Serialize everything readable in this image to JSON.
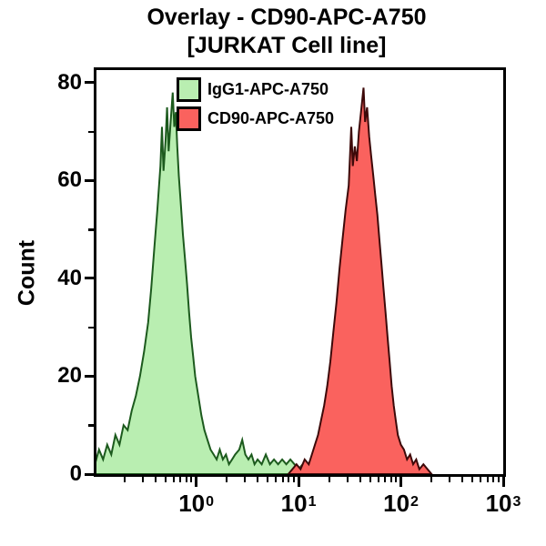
{
  "title": {
    "line1": "Overlay - CD90-APC-A750",
    "line2": "[JURKAT Cell line]"
  },
  "axes": {
    "y": {
      "label": "Count",
      "major_ticks": [
        0,
        20,
        40,
        60,
        80
      ],
      "minor_ticks": [
        10,
        30,
        50,
        70
      ],
      "max": 82.6
    },
    "x": {
      "scale": "log10",
      "log_min": -0.975,
      "log_max": 3,
      "major_ticks": [
        {
          "text": "10",
          "sup": "0",
          "log": 0
        },
        {
          "text": "10",
          "sup": "1",
          "log": 1
        },
        {
          "text": "10",
          "sup": "2",
          "log": 2
        },
        {
          "text": "10",
          "sup": "3",
          "log": 3
        }
      ],
      "minor_tick_decades": [
        -1,
        0,
        1,
        2
      ],
      "minor_tick_multiples": [
        2,
        3,
        4,
        5,
        6,
        7,
        8,
        9
      ]
    }
  },
  "legend": [
    {
      "label": "IgG1-APC-A750",
      "fill": "#b9eeb1",
      "border": "#000000"
    },
    {
      "label": "CD90-APC-A750",
      "fill": "#fa625e",
      "border": "#000000"
    }
  ],
  "chart_data": {
    "type": "area",
    "title": "Overlay - CD90-APC-A750 [JURKAT Cell line]",
    "xlabel": "",
    "ylabel": "Count",
    "x_scale": "log10",
    "xlim_log": [
      -0.975,
      3
    ],
    "ylim": [
      0,
      82.6
    ],
    "grid": false,
    "legend_position": "top-left-inside",
    "series": [
      {
        "name": "IgG1-APC-A750",
        "fill": "#b9eeb1",
        "stroke": "#1c5a1d",
        "peak_x_log": -0.23,
        "peak_count": 78,
        "points": [
          [
            -1.07,
            2
          ],
          [
            -1.03,
            3
          ],
          [
            -0.99,
            2
          ],
          [
            -0.95,
            5
          ],
          [
            -0.91,
            3
          ],
          [
            -0.87,
            6
          ],
          [
            -0.83,
            4
          ],
          [
            -0.79,
            8
          ],
          [
            -0.75,
            6
          ],
          [
            -0.71,
            10
          ],
          [
            -0.67,
            9
          ],
          [
            -0.63,
            13
          ],
          [
            -0.59,
            16
          ],
          [
            -0.55,
            20
          ],
          [
            -0.51,
            25
          ],
          [
            -0.47,
            31
          ],
          [
            -0.44,
            38
          ],
          [
            -0.41,
            46
          ],
          [
            -0.38,
            54
          ],
          [
            -0.35,
            63
          ],
          [
            -0.335,
            71
          ],
          [
            -0.32,
            62
          ],
          [
            -0.3,
            68
          ],
          [
            -0.285,
            75
          ],
          [
            -0.27,
            66
          ],
          [
            -0.25,
            72
          ],
          [
            -0.23,
            78
          ],
          [
            -0.215,
            71
          ],
          [
            -0.2,
            74
          ],
          [
            -0.185,
            67
          ],
          [
            -0.17,
            61
          ],
          [
            -0.15,
            55
          ],
          [
            -0.13,
            49
          ],
          [
            -0.11,
            44
          ],
          [
            -0.09,
            39
          ],
          [
            -0.07,
            33
          ],
          [
            -0.05,
            28
          ],
          [
            -0.03,
            24
          ],
          [
            -0.01,
            20
          ],
          [
            0.02,
            16
          ],
          [
            0.05,
            12
          ],
          [
            0.08,
            9
          ],
          [
            0.11,
            7
          ],
          [
            0.14,
            5
          ],
          [
            0.17,
            4
          ],
          [
            0.2,
            3
          ],
          [
            0.23,
            5
          ],
          [
            0.26,
            3
          ],
          [
            0.29,
            4
          ],
          [
            0.32,
            2
          ],
          [
            0.35,
            3
          ],
          [
            0.38,
            4
          ],
          [
            0.42,
            5
          ],
          [
            0.45,
            7
          ],
          [
            0.48,
            4
          ],
          [
            0.51,
            3
          ],
          [
            0.54,
            4
          ],
          [
            0.57,
            2
          ],
          [
            0.6,
            3
          ],
          [
            0.64,
            2
          ],
          [
            0.68,
            4
          ],
          [
            0.72,
            2
          ],
          [
            0.76,
            3
          ],
          [
            0.8,
            2
          ],
          [
            0.84,
            3
          ],
          [
            0.88,
            2
          ],
          [
            0.92,
            3
          ],
          [
            0.96,
            2
          ],
          [
            1.0,
            1
          ],
          [
            1.04,
            2
          ],
          [
            1.08,
            0
          ]
        ]
      },
      {
        "name": "CD90-APC-A750",
        "fill": "#fa625e",
        "stroke": "#3d0909",
        "peak_x_log": 1.635,
        "peak_count": 79,
        "points": [
          [
            0.9,
            0
          ],
          [
            0.94,
            1
          ],
          [
            0.98,
            2
          ],
          [
            1.02,
            1
          ],
          [
            1.06,
            3
          ],
          [
            1.1,
            2
          ],
          [
            1.13,
            4
          ],
          [
            1.16,
            6
          ],
          [
            1.19,
            8
          ],
          [
            1.22,
            11
          ],
          [
            1.25,
            14
          ],
          [
            1.28,
            18
          ],
          [
            1.31,
            23
          ],
          [
            1.34,
            29
          ],
          [
            1.37,
            35
          ],
          [
            1.4,
            42
          ],
          [
            1.43,
            48
          ],
          [
            1.46,
            54
          ],
          [
            1.49,
            59
          ],
          [
            1.515,
            71
          ],
          [
            1.53,
            63
          ],
          [
            1.55,
            67
          ],
          [
            1.57,
            64
          ],
          [
            1.59,
            70
          ],
          [
            1.61,
            74
          ],
          [
            1.635,
            79
          ],
          [
            1.65,
            72
          ],
          [
            1.67,
            75
          ],
          [
            1.69,
            69
          ],
          [
            1.71,
            65
          ],
          [
            1.73,
            61
          ],
          [
            1.75,
            57
          ],
          [
            1.77,
            53
          ],
          [
            1.79,
            48
          ],
          [
            1.81,
            43
          ],
          [
            1.83,
            38
          ],
          [
            1.85,
            33
          ],
          [
            1.87,
            28
          ],
          [
            1.89,
            23
          ],
          [
            1.91,
            18
          ],
          [
            1.93,
            14
          ],
          [
            1.95,
            11
          ],
          [
            1.97,
            8
          ],
          [
            2.0,
            6
          ],
          [
            2.03,
            5
          ],
          [
            2.06,
            3
          ],
          [
            2.09,
            4
          ],
          [
            2.12,
            2
          ],
          [
            2.15,
            3
          ],
          [
            2.18,
            1
          ],
          [
            2.22,
            2
          ],
          [
            2.26,
            1
          ],
          [
            2.3,
            0
          ]
        ]
      }
    ]
  }
}
